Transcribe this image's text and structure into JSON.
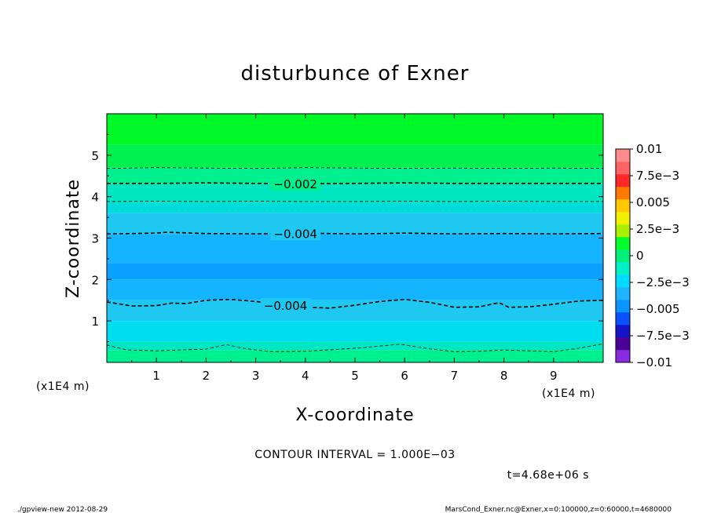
{
  "chart_data": {
    "type": "heatmap",
    "title": "disturbunce of Exner",
    "xlabel": "X-coordinate",
    "ylabel": "Z-coordinate",
    "x_unit": "(x1E4 m)",
    "y_unit": "(x1E4 m)",
    "xlim": [
      0,
      10
    ],
    "ylim": [
      0,
      6
    ],
    "x_ticks": [
      1,
      2,
      3,
      4,
      5,
      6,
      7,
      8,
      9
    ],
    "y_ticks": [
      1,
      2,
      3,
      4,
      5
    ],
    "colorbar": {
      "range": [
        -0.01,
        0.01
      ],
      "step": 0.00125,
      "labels": [
        {
          "value": 0.01,
          "text": "0.01"
        },
        {
          "value": 0.0075,
          "text": "7.5e−3"
        },
        {
          "value": 0.005,
          "text": "0.005"
        },
        {
          "value": 0.0025,
          "text": "2.5e−3"
        },
        {
          "value": 0,
          "text": "0"
        },
        {
          "value": -0.0025,
          "text": "−2.5e−3"
        },
        {
          "value": -0.005,
          "text": "−0.005"
        },
        {
          "value": -0.0075,
          "text": "−7.5e−3"
        },
        {
          "value": -0.01,
          "text": "−0.01"
        }
      ],
      "colors": [
        "#8a2be2",
        "#4b0096",
        "#1414c8",
        "#0a50ff",
        "#0a96ff",
        "#1eb4ff",
        "#00dcff",
        "#00f0c8",
        "#00f07a",
        "#00ff28",
        "#aaf000",
        "#f0f000",
        "#ffc800",
        "#ff7800",
        "#ff2828",
        "#ff6464",
        "#ff8c8c"
      ]
    },
    "bands": [
      {
        "z_top": 6.0,
        "value": -0.0005,
        "color": "#00f728"
      },
      {
        "z_top": 5.25,
        "value": -0.0015,
        "color": "#00f050"
      },
      {
        "z_top": 4.7,
        "value": -0.0025,
        "color": "#00f090"
      },
      {
        "z_top": 4.3,
        "value": -0.0035,
        "color": "#00e6c0"
      },
      {
        "z_top": 3.85,
        "value": -0.0045,
        "color": "#00dcdc"
      },
      {
        "z_top": 3.6,
        "value": -0.005,
        "color": "#1ec8f0"
      },
      {
        "z_top": 3.1,
        "value": -0.0055,
        "color": "#14b4ff"
      },
      {
        "z_top": 2.4,
        "value": -0.006,
        "color": "#0aa0ff"
      },
      {
        "z_top": 2.0,
        "value": -0.0055,
        "color": "#14b4ff"
      },
      {
        "z_top": 1.5,
        "value": -0.005,
        "color": "#1ec8f0"
      },
      {
        "z_top": 1.0,
        "value": -0.0045,
        "color": "#00dcf0"
      },
      {
        "z_top": 0.5,
        "value": -0.0035,
        "color": "#00e6c0"
      },
      {
        "z_top": 0.3,
        "value": -0.0025,
        "color": "#00f090"
      }
    ],
    "contours": [
      {
        "value": -0.001,
        "z": [
          [
            0,
            4.68
          ],
          [
            1,
            4.7
          ],
          [
            2,
            4.69
          ],
          [
            3,
            4.68
          ],
          [
            4,
            4.7
          ],
          [
            5,
            4.69
          ],
          [
            6,
            4.68
          ],
          [
            7,
            4.69
          ],
          [
            8,
            4.68
          ],
          [
            9,
            4.69
          ],
          [
            10,
            4.68
          ]
        ],
        "label": "",
        "thick": false
      },
      {
        "value": -0.002,
        "z": [
          [
            0,
            4.32
          ],
          [
            1,
            4.32
          ],
          [
            2,
            4.33
          ],
          [
            3,
            4.32
          ],
          [
            4,
            4.31
          ],
          [
            5,
            4.32
          ],
          [
            6,
            4.33
          ],
          [
            7,
            4.32
          ],
          [
            8,
            4.32
          ],
          [
            9,
            4.32
          ],
          [
            10,
            4.32
          ]
        ],
        "label": "−0.002",
        "label_x": 3.8,
        "thick": true
      },
      {
        "value": -0.003,
        "z": [
          [
            0,
            3.88
          ],
          [
            1,
            3.89
          ],
          [
            2,
            3.88
          ],
          [
            3,
            3.89
          ],
          [
            4,
            3.88
          ],
          [
            5,
            3.88
          ],
          [
            6,
            3.89
          ],
          [
            7,
            3.88
          ],
          [
            8,
            3.89
          ],
          [
            9,
            3.88
          ],
          [
            10,
            3.88
          ]
        ],
        "label": "",
        "thick": false
      },
      {
        "value": -0.004,
        "z": [
          [
            0,
            3.1
          ],
          [
            1,
            3.12
          ],
          [
            1.2,
            3.14
          ],
          [
            2,
            3.11
          ],
          [
            3,
            3.1
          ],
          [
            4,
            3.12
          ],
          [
            5,
            3.1
          ],
          [
            6,
            3.12
          ],
          [
            7,
            3.1
          ],
          [
            8,
            3.11
          ],
          [
            9,
            3.1
          ],
          [
            10,
            3.11
          ]
        ],
        "label": "−0.004",
        "label_x": 3.8,
        "thick": true
      },
      {
        "value": -0.004,
        "z": [
          [
            0,
            1.46
          ],
          [
            0.5,
            1.36
          ],
          [
            1,
            1.37
          ],
          [
            1.3,
            1.43
          ],
          [
            1.6,
            1.42
          ],
          [
            2,
            1.5
          ],
          [
            2.5,
            1.52
          ],
          [
            3,
            1.47
          ],
          [
            3.5,
            1.4
          ],
          [
            4,
            1.33
          ],
          [
            4.5,
            1.31
          ],
          [
            5,
            1.38
          ],
          [
            5.5,
            1.47
          ],
          [
            6,
            1.52
          ],
          [
            6.5,
            1.45
          ],
          [
            7,
            1.33
          ],
          [
            7.5,
            1.34
          ],
          [
            7.9,
            1.44
          ],
          [
            8.1,
            1.33
          ],
          [
            8.5,
            1.34
          ],
          [
            9,
            1.4
          ],
          [
            9.5,
            1.48
          ],
          [
            10,
            1.5
          ]
        ],
        "label": "−0.004",
        "label_x": 3.6,
        "thick": true
      },
      {
        "value": -0.003,
        "z": [
          [
            0,
            0.42
          ],
          [
            0.4,
            0.3
          ],
          [
            1,
            0.28
          ],
          [
            1.5,
            0.3
          ],
          [
            2,
            0.32
          ],
          [
            2.4,
            0.43
          ],
          [
            2.8,
            0.33
          ],
          [
            3.3,
            0.26
          ],
          [
            4,
            0.27
          ],
          [
            4.6,
            0.31
          ],
          [
            5.2,
            0.36
          ],
          [
            5.9,
            0.44
          ],
          [
            6.5,
            0.33
          ],
          [
            7,
            0.26
          ],
          [
            7.5,
            0.27
          ],
          [
            8,
            0.3
          ],
          [
            8.5,
            0.28
          ],
          [
            9,
            0.26
          ],
          [
            9.5,
            0.34
          ],
          [
            10,
            0.45
          ]
        ],
        "label": "",
        "thick": false
      }
    ]
  },
  "contour_interval": "CONTOUR INTERVAL = 1.000E−03",
  "time_label": "t=4.68e+06 s",
  "footer_left": "./gpview-new   2012-08-29",
  "footer_right": "MarsCond_Exner.nc@Exner,x=0:100000,z=0:60000,t=4680000"
}
